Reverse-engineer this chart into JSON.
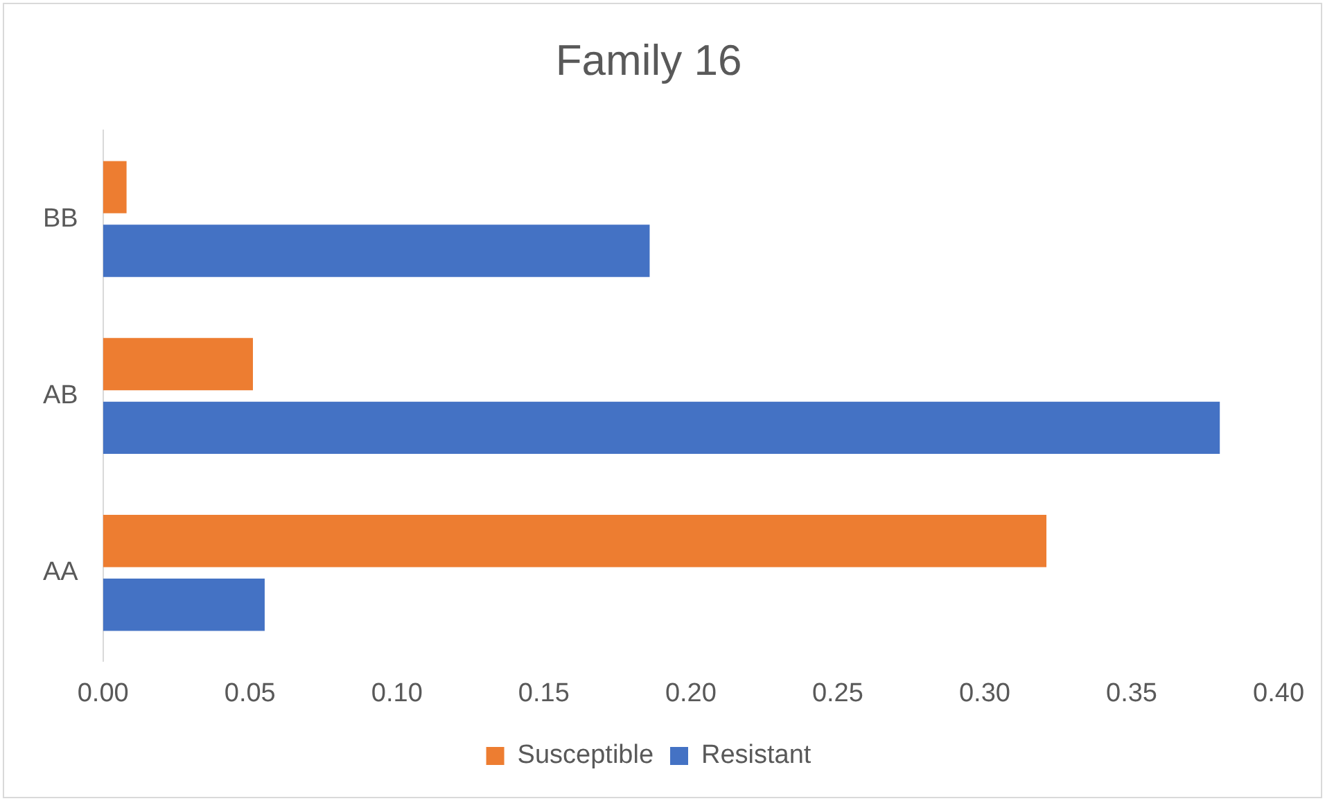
{
  "chart_data": {
    "type": "bar",
    "orientation": "horizontal",
    "title": "Family 16",
    "categories": [
      "BB",
      "AB",
      "AA"
    ],
    "series": [
      {
        "name": "Susceptible",
        "color": "#ed7d31",
        "values": [
          0.008,
          0.051,
          0.321
        ]
      },
      {
        "name": "Resistant",
        "color": "#4472c4",
        "values": [
          0.186,
          0.38,
          0.055
        ]
      }
    ],
    "xlim": [
      0,
      0.4
    ],
    "xticks": [
      {
        "value": 0,
        "label": "0.00"
      },
      {
        "value": 0.05,
        "label": "0.05"
      },
      {
        "value": 0.1,
        "label": "0.10"
      },
      {
        "value": 0.15,
        "label": "0.15"
      },
      {
        "value": 0.2,
        "label": "0.20"
      },
      {
        "value": 0.25,
        "label": "0.25"
      },
      {
        "value": 0.3,
        "label": "0.30"
      },
      {
        "value": 0.35,
        "label": "0.35"
      },
      {
        "value": 0.4,
        "label": "0.40"
      }
    ],
    "grid": false,
    "legend": "bottom"
  }
}
